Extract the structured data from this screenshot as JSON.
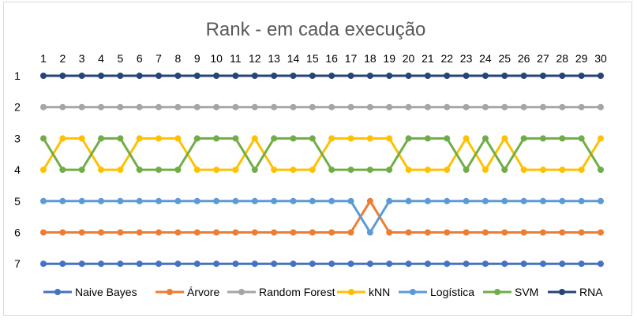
{
  "chart_data": {
    "type": "line",
    "title": "Rank - em cada execução",
    "xlabel": "",
    "ylabel": "",
    "x": [
      1,
      2,
      3,
      4,
      5,
      6,
      7,
      8,
      9,
      10,
      11,
      12,
      13,
      14,
      15,
      16,
      17,
      18,
      19,
      20,
      21,
      22,
      23,
      24,
      25,
      26,
      27,
      28,
      29,
      30
    ],
    "y_ticks": [
      1,
      2,
      3,
      4,
      5,
      6,
      7
    ],
    "ylim": [
      1,
      7
    ],
    "y_reversed": true,
    "x_axis_position": "top",
    "grid": false,
    "legend_position": "bottom",
    "series": [
      {
        "name": "Naive Bayes",
        "color": "#4472C4",
        "values": [
          7,
          7,
          7,
          7,
          7,
          7,
          7,
          7,
          7,
          7,
          7,
          7,
          7,
          7,
          7,
          7,
          7,
          7,
          7,
          7,
          7,
          7,
          7,
          7,
          7,
          7,
          7,
          7,
          7,
          7
        ]
      },
      {
        "name": "Árvore",
        "color": "#ED7D31",
        "values": [
          6,
          6,
          6,
          6,
          6,
          6,
          6,
          6,
          6,
          6,
          6,
          6,
          6,
          6,
          6,
          6,
          6,
          5,
          6,
          6,
          6,
          6,
          6,
          6,
          6,
          6,
          6,
          6,
          6,
          6
        ]
      },
      {
        "name": "Random Forest",
        "color": "#A5A5A5",
        "values": [
          2,
          2,
          2,
          2,
          2,
          2,
          2,
          2,
          2,
          2,
          2,
          2,
          2,
          2,
          2,
          2,
          2,
          2,
          2,
          2,
          2,
          2,
          2,
          2,
          2,
          2,
          2,
          2,
          2,
          2
        ]
      },
      {
        "name": "kNN",
        "color": "#FFC000",
        "values": [
          4,
          3,
          3,
          4,
          4,
          3,
          3,
          3,
          4,
          4,
          4,
          3,
          4,
          4,
          4,
          3,
          3,
          3,
          3,
          4,
          4,
          4,
          3,
          4,
          3,
          4,
          4,
          4,
          4,
          3
        ]
      },
      {
        "name": "Logística",
        "color": "#5B9BD5",
        "values": [
          5,
          5,
          5,
          5,
          5,
          5,
          5,
          5,
          5,
          5,
          5,
          5,
          5,
          5,
          5,
          5,
          5,
          6,
          5,
          5,
          5,
          5,
          5,
          5,
          5,
          5,
          5,
          5,
          5,
          5
        ]
      },
      {
        "name": "SVM",
        "color": "#70AD47",
        "values": [
          3,
          4,
          4,
          3,
          3,
          4,
          4,
          4,
          3,
          3,
          3,
          4,
          3,
          3,
          3,
          4,
          4,
          4,
          4,
          3,
          3,
          3,
          4,
          3,
          4,
          3,
          3,
          3,
          3,
          4
        ]
      },
      {
        "name": "RNA",
        "color": "#264478",
        "values": [
          1,
          1,
          1,
          1,
          1,
          1,
          1,
          1,
          1,
          1,
          1,
          1,
          1,
          1,
          1,
          1,
          1,
          1,
          1,
          1,
          1,
          1,
          1,
          1,
          1,
          1,
          1,
          1,
          1,
          1
        ]
      }
    ]
  }
}
